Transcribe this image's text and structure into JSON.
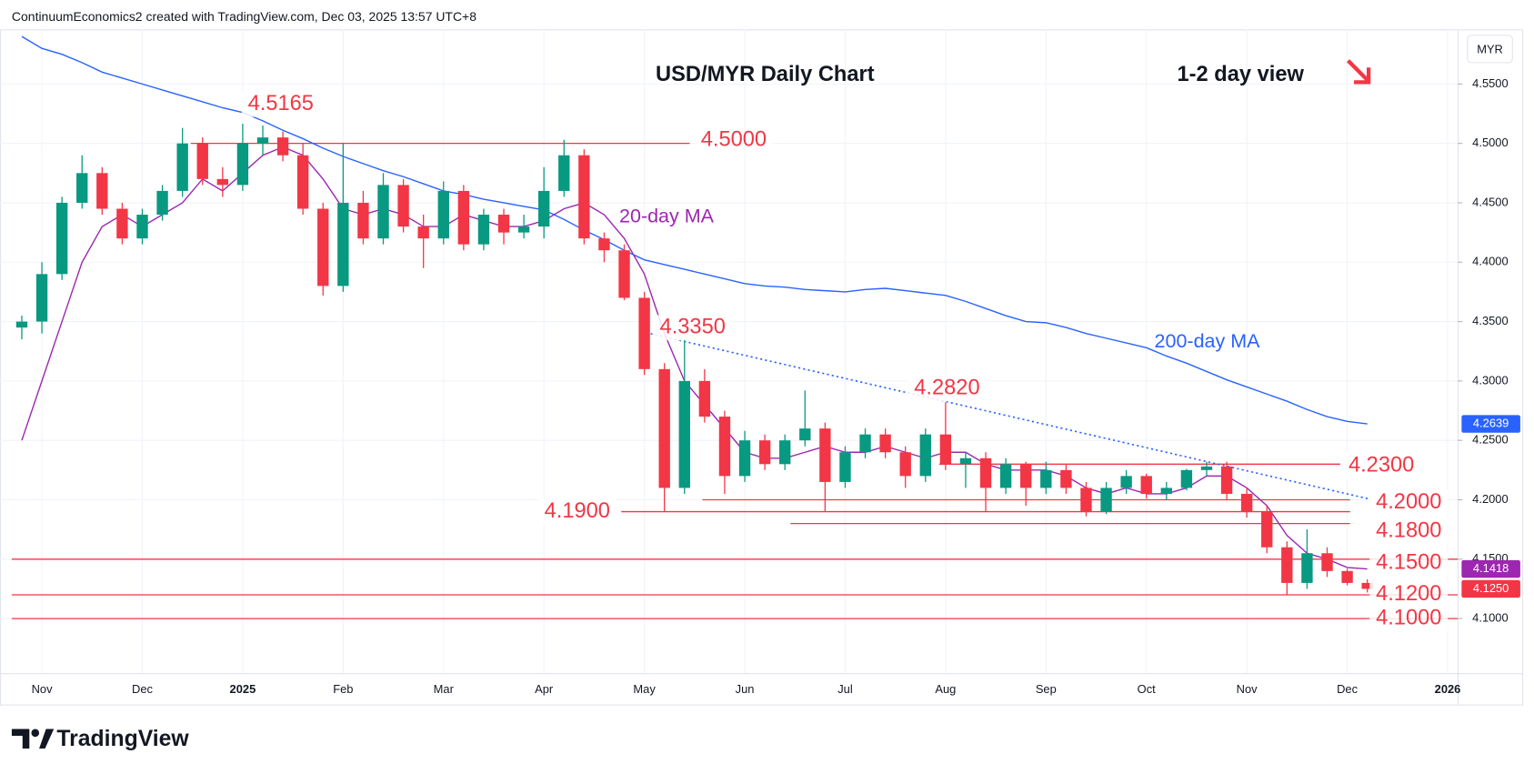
{
  "header": {
    "text": "ContinuumEconomics2 created with TradingView.com, Dec 03, 2025 13:57 UTC+8"
  },
  "footer": {
    "brand": "TradingView"
  },
  "chart_data": {
    "type": "candlestick",
    "title": "USD/MYR Daily Chart",
    "subtitle": "1-2 day view",
    "currency": "MYR",
    "up_color": "#089981",
    "down_color": "#f23645",
    "grid": true,
    "categories": [
      null,
      "Nov",
      null,
      null,
      null,
      null,
      "Dec",
      null,
      null,
      null,
      null,
      "2025",
      null,
      null,
      null,
      null,
      "Feb",
      null,
      null,
      null,
      null,
      "Mar",
      null,
      null,
      null,
      null,
      "Apr",
      null,
      null,
      null,
      null,
      "May",
      null,
      null,
      null,
      null,
      "Jun",
      null,
      null,
      null,
      null,
      "Jul",
      null,
      null,
      null,
      null,
      "Aug",
      null,
      null,
      null,
      null,
      "Sep",
      null,
      null,
      null,
      null,
      "Oct",
      null,
      null,
      null,
      null,
      "Nov",
      null,
      null,
      null,
      null,
      "Dec",
      null,
      null,
      null,
      null,
      "2026"
    ],
    "open": [
      4.345,
      4.35,
      4.39,
      4.45,
      4.475,
      4.445,
      4.42,
      4.44,
      4.46,
      4.5,
      4.47,
      4.465,
      4.5,
      4.505,
      4.49,
      4.445,
      4.38,
      4.45,
      4.42,
      4.465,
      4.43,
      4.42,
      4.46,
      4.415,
      4.44,
      4.425,
      4.43,
      4.46,
      4.49,
      4.42,
      4.41,
      4.37,
      4.31,
      4.21,
      4.3,
      4.27,
      4.22,
      4.25,
      4.23,
      4.25,
      4.26,
      4.215,
      4.24,
      4.255,
      4.24,
      4.22,
      4.255,
      4.23,
      4.235,
      4.21,
      4.23,
      4.21,
      4.225,
      4.21,
      4.19,
      4.21,
      4.22,
      4.205,
      4.21,
      4.225,
      4.228,
      4.205,
      4.19,
      4.16,
      4.13,
      4.155,
      4.14,
      4.13,
      null,
      null,
      null,
      null
    ],
    "high": [
      4.355,
      4.4,
      4.455,
      4.49,
      4.48,
      4.45,
      4.445,
      4.465,
      4.513,
      4.505,
      4.48,
      4.5165,
      4.515,
      4.51,
      4.5,
      4.45,
      4.5,
      4.46,
      4.475,
      4.47,
      4.44,
      4.468,
      4.465,
      4.445,
      4.445,
      4.44,
      4.48,
      4.503,
      4.495,
      4.425,
      4.415,
      4.375,
      4.315,
      4.335,
      4.31,
      4.275,
      4.258,
      4.255,
      4.255,
      4.292,
      4.265,
      4.245,
      4.26,
      4.26,
      4.245,
      4.26,
      4.282,
      4.24,
      4.24,
      4.235,
      4.232,
      4.232,
      4.23,
      4.215,
      4.215,
      4.225,
      4.222,
      4.215,
      4.226,
      4.232,
      4.232,
      4.21,
      4.195,
      4.165,
      4.175,
      4.16,
      4.142,
      4.133,
      null,
      null,
      null,
      null
    ],
    "low": [
      4.335,
      4.34,
      4.385,
      4.445,
      4.44,
      4.415,
      4.415,
      4.435,
      4.455,
      4.465,
      4.455,
      4.46,
      4.49,
      4.485,
      4.44,
      4.372,
      4.375,
      4.415,
      4.415,
      4.425,
      4.395,
      4.415,
      4.41,
      4.41,
      4.415,
      4.42,
      4.42,
      4.455,
      4.415,
      4.4,
      4.368,
      4.305,
      4.19,
      4.205,
      4.265,
      4.205,
      4.215,
      4.225,
      4.225,
      4.245,
      4.19,
      4.21,
      4.235,
      4.235,
      4.21,
      4.215,
      4.225,
      4.21,
      4.19,
      4.205,
      4.195,
      4.205,
      4.205,
      4.186,
      4.188,
      4.205,
      4.201,
      4.2,
      4.208,
      4.22,
      4.2,
      4.185,
      4.155,
      4.12,
      4.125,
      4.135,
      4.128,
      4.122,
      null,
      null,
      null,
      null
    ],
    "close": [
      4.35,
      4.39,
      4.45,
      4.475,
      4.445,
      4.42,
      4.44,
      4.46,
      4.5,
      4.47,
      4.465,
      4.5,
      4.505,
      4.49,
      4.445,
      4.38,
      4.45,
      4.42,
      4.465,
      4.43,
      4.42,
      4.46,
      4.415,
      4.44,
      4.425,
      4.43,
      4.46,
      4.49,
      4.42,
      4.41,
      4.37,
      4.31,
      4.21,
      4.3,
      4.27,
      4.22,
      4.25,
      4.23,
      4.25,
      4.26,
      4.215,
      4.24,
      4.255,
      4.24,
      4.22,
      4.255,
      4.23,
      4.235,
      4.21,
      4.23,
      4.21,
      4.225,
      4.21,
      4.19,
      4.21,
      4.22,
      4.205,
      4.21,
      4.225,
      4.228,
      4.205,
      4.19,
      4.16,
      4.13,
      4.155,
      4.14,
      4.13,
      4.125,
      null,
      null,
      null,
      null
    ],
    "series": [
      {
        "name": "20-day MA",
        "color": "#9c27b0",
        "values": [
          4.25,
          4.3,
          4.35,
          4.4,
          4.43,
          4.44,
          4.43,
          4.44,
          4.45,
          4.47,
          4.46,
          4.475,
          4.49,
          4.497,
          4.49,
          4.47,
          4.445,
          4.44,
          4.445,
          4.44,
          4.43,
          4.43,
          4.44,
          4.435,
          4.43,
          4.43,
          4.435,
          4.445,
          4.45,
          4.44,
          4.42,
          4.39,
          4.34,
          4.3,
          4.28,
          4.26,
          4.24,
          4.235,
          4.235,
          4.24,
          4.245,
          4.24,
          4.24,
          4.245,
          4.24,
          4.235,
          4.24,
          4.24,
          4.23,
          4.225,
          4.225,
          4.225,
          4.22,
          4.21,
          4.205,
          4.21,
          4.205,
          4.205,
          4.21,
          4.22,
          4.22,
          4.21,
          4.195,
          4.17,
          4.155,
          4.15,
          4.143,
          4.1418,
          null,
          null,
          null,
          null
        ]
      },
      {
        "name": "200-day MA",
        "color": "#2962ff",
        "values": [
          4.59,
          4.58,
          4.575,
          4.568,
          4.56,
          4.555,
          4.55,
          4.545,
          4.54,
          4.535,
          4.53,
          4.526,
          4.519,
          4.511,
          4.504,
          4.496,
          4.489,
          4.483,
          4.477,
          4.472,
          4.466,
          4.46,
          4.457,
          4.453,
          4.45,
          4.447,
          4.444,
          4.436,
          4.427,
          4.419,
          4.41,
          4.402,
          4.398,
          4.394,
          4.39,
          4.386,
          4.382,
          4.38,
          4.379,
          4.377,
          4.376,
          4.375,
          4.377,
          4.378,
          4.376,
          4.374,
          4.372,
          4.367,
          4.361,
          4.355,
          4.35,
          4.349,
          4.345,
          4.34,
          4.336,
          4.332,
          4.328,
          4.321,
          4.315,
          4.308,
          4.301,
          4.295,
          4.289,
          4.283,
          4.276,
          4.27,
          4.266,
          4.2639,
          null,
          null,
          null,
          null
        ]
      }
    ],
    "ylim": [
      4.054,
      4.596
    ],
    "yticks": [
      {
        "value": 4.1,
        "label": "4.1000"
      },
      {
        "value": 4.15,
        "label": "4.1500"
      },
      {
        "value": 4.2,
        "label": "4.2000"
      },
      {
        "value": 4.25,
        "label": "4.2500"
      },
      {
        "value": 4.3,
        "label": "4.3000"
      },
      {
        "value": 4.35,
        "label": "4.3500"
      },
      {
        "value": 4.4,
        "label": "4.4000"
      },
      {
        "value": 4.45,
        "label": "4.4500"
      },
      {
        "value": 4.5,
        "label": "4.5000"
      },
      {
        "value": 4.55,
        "label": "4.5500"
      }
    ],
    "level_color": "#f23645",
    "levels": [
      {
        "value": 4.5165,
        "label": "4.5165"
      },
      {
        "value": 4.5,
        "label": "4.5000"
      },
      {
        "value": 4.335,
        "label": "4.3350"
      },
      {
        "value": 4.282,
        "label": "4.2820"
      },
      {
        "value": 4.23,
        "label": "4.2300"
      },
      {
        "value": 4.2,
        "label": "4.2000"
      },
      {
        "value": 4.19,
        "label": "4.1900"
      },
      {
        "value": 4.18,
        "label": "4.1800"
      },
      {
        "value": 4.15,
        "label": "4.1500"
      },
      {
        "value": 4.12,
        "label": "4.1200"
      },
      {
        "value": 4.1,
        "label": "4.1000"
      }
    ],
    "price_tags": [
      {
        "value": 4.2639,
        "label": "4.2639",
        "color": "#2962ff"
      },
      {
        "value": 4.1418,
        "label": "4.1418",
        "color": "#9c27b0"
      },
      {
        "value": 4.125,
        "label": "4.1250",
        "color": "#f23645"
      }
    ]
  }
}
